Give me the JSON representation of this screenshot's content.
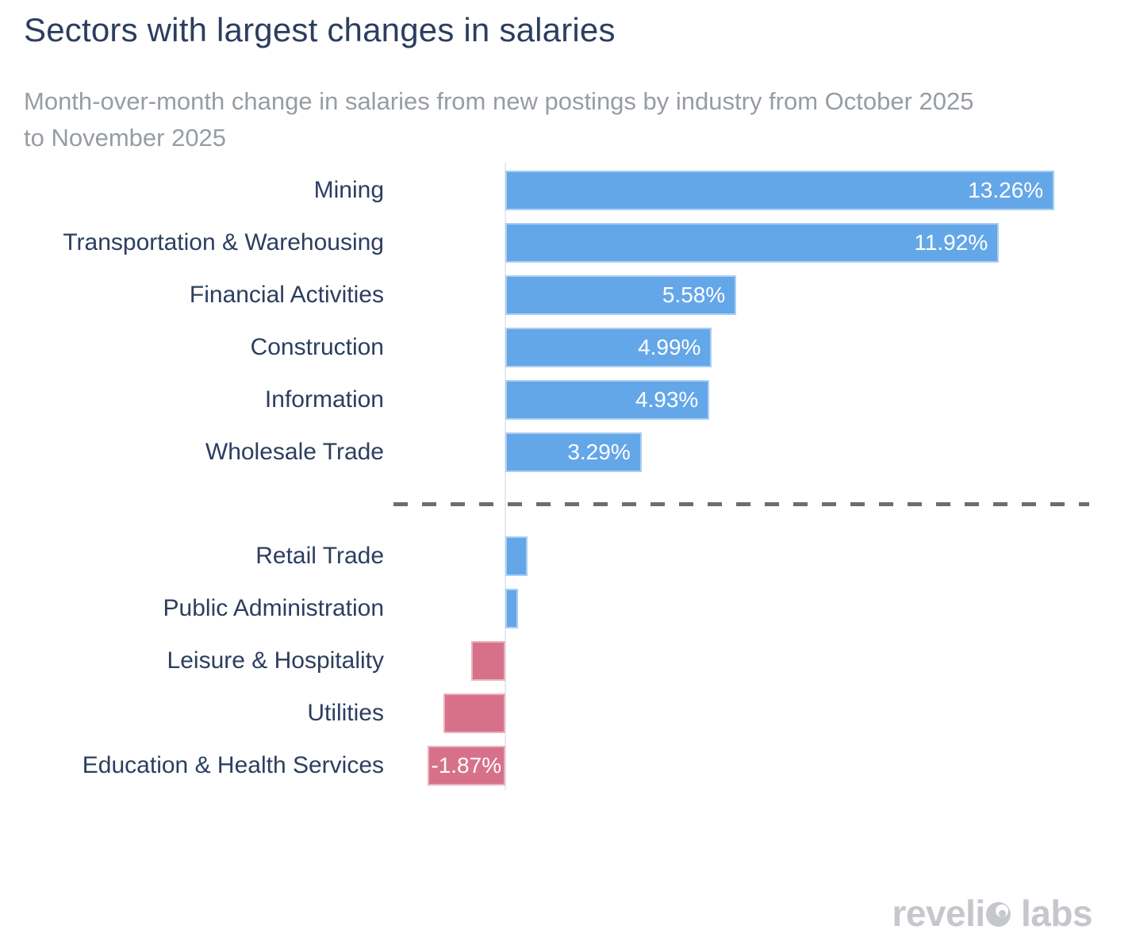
{
  "title": "Sectors with largest changes in salaries",
  "subtitle": {
    "line1": "Month-over-month change in salaries from new postings by industry from October 2025",
    "line2": "to November 2025"
  },
  "watermark": {
    "text": "revelio labs"
  },
  "colors": {
    "positive_bar": "#64a7e8",
    "negative_bar": "#d7718a",
    "title_text": "#2c3e5f",
    "subtitle_text": "#979ca4",
    "category_text": "#2c3e5f",
    "bar_value_text": "#ffffff",
    "dashed_separator": "#6d6d6d",
    "zero_axis_line": "#e9e9f4",
    "watermark_text": "#c5c7cc"
  },
  "chart_data": {
    "type": "bar",
    "orientation": "horizontal",
    "title": "Sectors with largest changes in salaries",
    "subtitle": "Month-over-month change in salaries from new postings by industry from October 2025 to November 2025",
    "xlabel": "",
    "ylabel": "",
    "value_unit": "%",
    "xlim": [
      -2.7,
      14.1
    ],
    "grid": false,
    "legend": false,
    "separator_after_index": 5,
    "categories": [
      "Mining",
      "Transportation & Warehousing",
      "Financial Activities",
      "Construction",
      "Information",
      "Wholesale Trade",
      "Retail Trade",
      "Public Administration",
      "Leisure & Hospitality",
      "Utilities",
      "Education & Health Services"
    ],
    "values": [
      13.26,
      11.92,
      5.58,
      4.99,
      4.93,
      3.29,
      0.54,
      0.3,
      -0.82,
      -1.49,
      -1.87
    ],
    "bar_labels": [
      "13.26%",
      "11.92%",
      "5.58%",
      "4.99%",
      "4.93%",
      "3.29%",
      "",
      "",
      "",
      "",
      "-1.87%"
    ]
  }
}
